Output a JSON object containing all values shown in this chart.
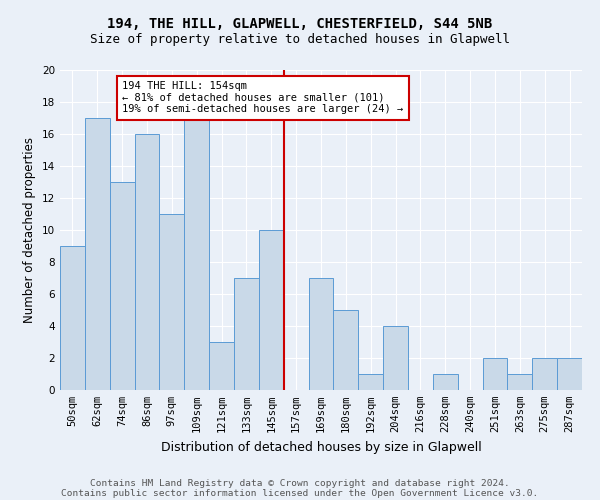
{
  "title1": "194, THE HILL, GLAPWELL, CHESTERFIELD, S44 5NB",
  "title2": "Size of property relative to detached houses in Glapwell",
  "xlabel": "Distribution of detached houses by size in Glapwell",
  "ylabel": "Number of detached properties",
  "footer1": "Contains HM Land Registry data © Crown copyright and database right 2024.",
  "footer2": "Contains public sector information licensed under the Open Government Licence v3.0.",
  "bin_labels": [
    "50sqm",
    "62sqm",
    "74sqm",
    "86sqm",
    "97sqm",
    "109sqm",
    "121sqm",
    "133sqm",
    "145sqm",
    "157sqm",
    "169sqm",
    "180sqm",
    "192sqm",
    "204sqm",
    "216sqm",
    "228sqm",
    "240sqm",
    "251sqm",
    "263sqm",
    "275sqm",
    "287sqm"
  ],
  "bar_values": [
    9,
    17,
    13,
    16,
    11,
    17,
    3,
    7,
    10,
    0,
    7,
    5,
    1,
    4,
    0,
    1,
    0,
    2,
    1,
    2,
    2
  ],
  "bar_color": "#c9d9e8",
  "bar_edgecolor": "#5b9bd5",
  "vline_x": 9.0,
  "vline_color": "#cc0000",
  "annotation_text": "194 THE HILL: 154sqm\n← 81% of detached houses are smaller (101)\n19% of semi-detached houses are larger (24) →",
  "annotation_box_color": "#cc0000",
  "ylim": [
    0,
    20
  ],
  "yticks": [
    0,
    2,
    4,
    6,
    8,
    10,
    12,
    14,
    16,
    18,
    20
  ],
  "bg_color": "#eaf0f8",
  "plot_bg_color": "#eaf0f8",
  "grid_color": "#ffffff",
  "title1_fontsize": 10,
  "title2_fontsize": 9,
  "xlabel_fontsize": 9,
  "ylabel_fontsize": 8.5,
  "tick_fontsize": 7.5,
  "footer_fontsize": 6.8,
  "ann_fontsize": 7.5
}
